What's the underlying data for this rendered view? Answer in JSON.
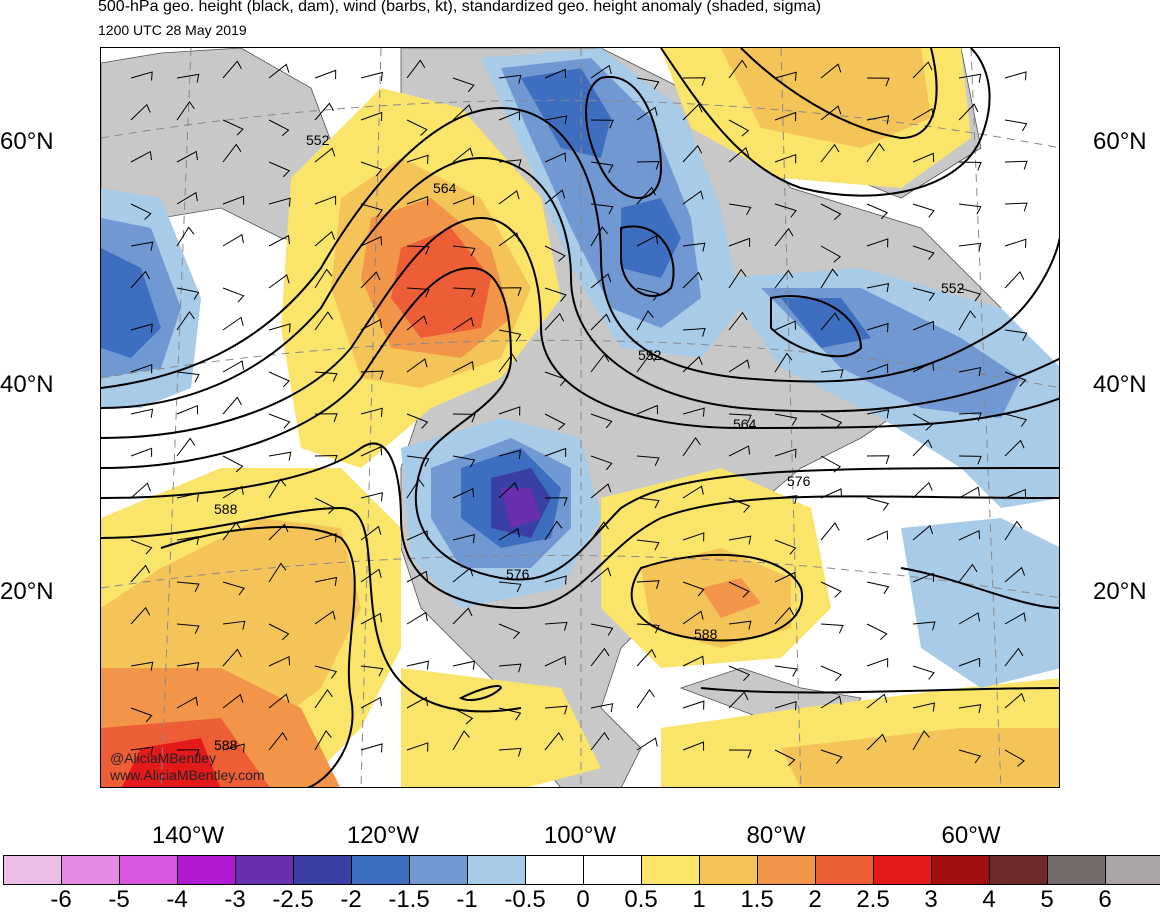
{
  "header": {
    "title": "500-hPa geo. height (black, dam), wind (barbs, kt), standardized geo. height anomaly (shaded, sigma)",
    "valid_time": "1200 UTC 28 May 2019"
  },
  "map": {
    "lat_labels_left": [
      "60°N",
      "40°N",
      "20°N"
    ],
    "lat_labels_right": [
      "60°N",
      "40°N",
      "20°N"
    ],
    "lon_labels": [
      "140°W",
      "120°W",
      "100°W",
      "80°W",
      "60°W"
    ],
    "height_contour_labels": [
      "552",
      "564",
      "552",
      "564",
      "576",
      "552",
      "576",
      "588",
      "588",
      "588"
    ],
    "credit_handle": "@AliciaMBentley",
    "credit_url": "www.AliciaMBentley.com"
  },
  "colorbar": {
    "ticks": [
      "-6",
      "-5",
      "-4",
      "-3",
      "-2.5",
      "-2",
      "-1.5",
      "-1",
      "-0.5",
      "0",
      "0.5",
      "1",
      "1.5",
      "2",
      "2.5",
      "3",
      "4",
      "5",
      "6"
    ],
    "colors": [
      "#ebbce6",
      "#e48ae4",
      "#d956e0",
      "#b11ad0",
      "#6a2fb0",
      "#3a3fa6",
      "#3e6ec0",
      "#7098d2",
      "#a8cbe8",
      "#ffffff",
      "#ffffff",
      "#fbe46a",
      "#f5c458",
      "#f29548",
      "#ee5e36",
      "#e41a1a",
      "#a30e0e",
      "#6e2a2a",
      "#736a6a",
      "#a9a3a3"
    ]
  }
}
